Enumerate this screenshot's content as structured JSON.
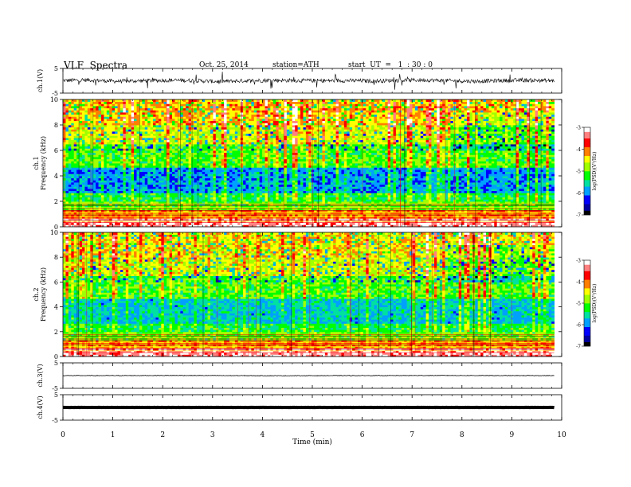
{
  "header": {
    "title": "VLF  Spectra",
    "date": "Oct. 25, 2014",
    "station": "station=ATH",
    "start": "start  UT  =   1  : 30 : 0"
  },
  "colors": {
    "waveform": "#000000",
    "background": "#ffffff",
    "colormap": [
      "#000000",
      "#0000a0",
      "#0000ff",
      "#00a0ff",
      "#00e0a0",
      "#00ff00",
      "#a0ff00",
      "#ffff00",
      "#ff8000",
      "#ff0000",
      "#ff8080",
      "#ffffff"
    ]
  },
  "chart_data": [
    {
      "type": "line",
      "panel": "ch1-waveform",
      "ylabel": "ch.1(V)",
      "ylim": [
        -5,
        5
      ],
      "yticks": [
        "5",
        "-5"
      ],
      "xlim": [
        0,
        10
      ],
      "series": [
        {
          "values": [
            0.1,
            0.3,
            -0.2,
            0.0,
            0.2,
            0.1,
            -0.3,
            0.0,
            0.2,
            0.1,
            0.0,
            0.1,
            -0.1,
            0.2,
            0.3,
            0.0,
            -0.2,
            0.1,
            0.2,
            0.0
          ]
        }
      ]
    },
    {
      "type": "heatmap",
      "panel": "ch1-spectrogram",
      "ylabel": "ch.1",
      "ylabel2": "Frequency  (kHz)",
      "ylim": [
        0,
        10
      ],
      "yticks": [
        "0",
        "2",
        "4",
        "6",
        "8",
        "10"
      ],
      "xlim": [
        0,
        10
      ],
      "colorbar": {
        "label": "log(PSD)(V²/Hz)",
        "range": [
          -7,
          -3
        ],
        "ticks": [
          "-3",
          "-4",
          "-5",
          "-6",
          "-7"
        ]
      }
    },
    {
      "type": "heatmap",
      "panel": "ch2-spectrogram",
      "ylabel": "ch.2",
      "ylabel2": "Frequency  (kHz)",
      "ylim": [
        0,
        10
      ],
      "yticks": [
        "0",
        "2",
        "4",
        "6",
        "8",
        "10"
      ],
      "xlim": [
        0,
        10
      ],
      "colorbar": {
        "label": "log(PSD)(V²/Hz)",
        "range": [
          -7,
          -3
        ],
        "ticks": [
          "-3",
          "-4",
          "-5",
          "-6",
          "-7"
        ]
      }
    },
    {
      "type": "line",
      "panel": "ch3-waveform",
      "ylabel": "ch.3(V)",
      "ylim": [
        -5,
        5
      ],
      "yticks": [
        "5",
        "-5"
      ],
      "xlim": [
        0,
        10
      ],
      "series": [
        {
          "values": [
            0.0,
            0.0,
            0.05,
            0.0,
            -0.05,
            0.0,
            0.0,
            0.05,
            0.0,
            0.0
          ]
        }
      ]
    },
    {
      "type": "line",
      "panel": "ch4-waveform",
      "ylabel": "ch.4(V)",
      "ylim": [
        -5,
        5
      ],
      "yticks": [
        "5",
        "-5"
      ],
      "xlim": [
        0,
        10
      ],
      "xlabel": "Time  (min)",
      "xticks": [
        "0",
        "1",
        "2",
        "3",
        "4",
        "5",
        "6",
        "7",
        "8",
        "9",
        "10"
      ],
      "series": [
        {
          "values": [
            0.0,
            0.0,
            0.0,
            0.0,
            0.0,
            0.0,
            0.0,
            0.0,
            0.0,
            0.0
          ]
        }
      ]
    }
  ]
}
